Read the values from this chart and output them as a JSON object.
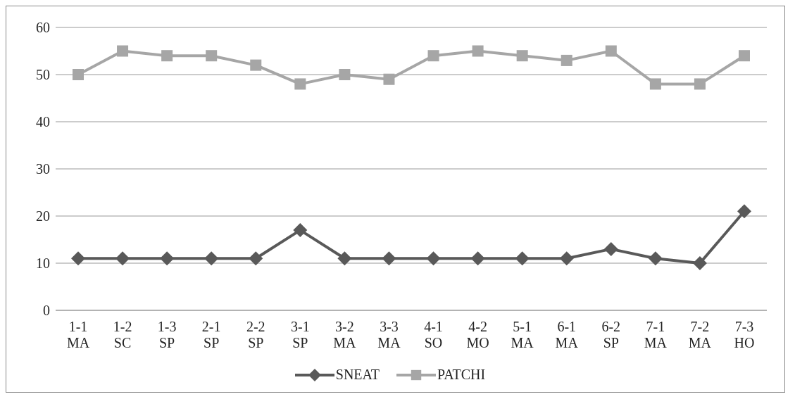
{
  "chart_data": {
    "type": "line",
    "categories": [
      "1-1\nMA",
      "1-2\nSC",
      "1-3\nSP",
      "2-1\nSP",
      "2-2\nSP",
      "3-1\nSP",
      "3-2\nMA",
      "3-3\nMA",
      "4-1\nSO",
      "4-2\nMO",
      "5-1\nMA",
      "6-1\nMA",
      "6-2\nSP",
      "7-1\nMA",
      "7-2\nMA",
      "7-3\nHO"
    ],
    "series": [
      {
        "name": "SNEAT",
        "color": "#595959",
        "marker": "diamond",
        "values": [
          11,
          11,
          11,
          11,
          11,
          17,
          11,
          11,
          11,
          11,
          11,
          11,
          13,
          11,
          10,
          21
        ]
      },
      {
        "name": "PATCHI",
        "color": "#a6a6a6",
        "marker": "square",
        "values": [
          50,
          55,
          54,
          54,
          52,
          48,
          50,
          49,
          54,
          55,
          54,
          53,
          55,
          48,
          48,
          54
        ]
      }
    ],
    "ylim": [
      0,
      60
    ],
    "yticks": [
      0,
      10,
      20,
      30,
      40,
      50,
      60
    ],
    "grid": "y",
    "legend": "bottom",
    "line_style": "solid"
  }
}
